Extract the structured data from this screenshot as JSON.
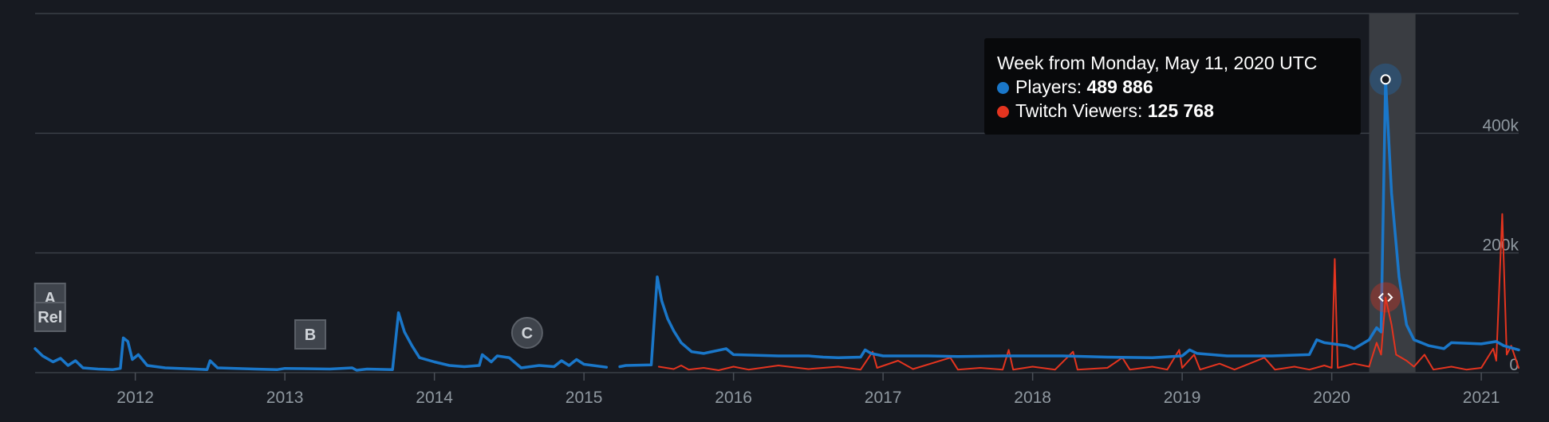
{
  "chart_data": {
    "type": "line",
    "x_start": 2011.33,
    "x_end": 2021.25,
    "xticks": [
      "2012",
      "2013",
      "2014",
      "2015",
      "2016",
      "2017",
      "2018",
      "2019",
      "2020",
      "2021"
    ],
    "yticks": [
      "400k",
      "200k",
      "0"
    ],
    "ylim": [
      0,
      600000
    ],
    "grid": true,
    "series": [
      {
        "name": "Players",
        "color": "#1a77c9",
        "points": [
          [
            2011.33,
            40000
          ],
          [
            2011.38,
            28000
          ],
          [
            2011.45,
            18000
          ],
          [
            2011.5,
            24000
          ],
          [
            2011.55,
            12000
          ],
          [
            2011.6,
            20000
          ],
          [
            2011.65,
            8000
          ],
          [
            2011.75,
            6000
          ],
          [
            2011.85,
            5000
          ],
          [
            2011.9,
            7000
          ],
          [
            2011.92,
            58000
          ],
          [
            2011.95,
            52000
          ],
          [
            2011.98,
            22000
          ],
          [
            2012.02,
            30000
          ],
          [
            2012.08,
            12000
          ],
          [
            2012.2,
            8000
          ],
          [
            2012.4,
            6000
          ],
          [
            2012.48,
            5000
          ],
          [
            2012.5,
            20000
          ],
          [
            2012.55,
            8000
          ],
          [
            2012.8,
            6000
          ],
          [
            2012.95,
            5000
          ],
          [
            2013.0,
            7000
          ],
          [
            2013.3,
            6000
          ],
          [
            2013.45,
            8000
          ],
          [
            2013.48,
            4000
          ],
          [
            2013.55,
            6000
          ],
          [
            2013.72,
            5000
          ],
          [
            2013.76,
            100000
          ],
          [
            2013.8,
            68000
          ],
          [
            2013.85,
            45000
          ],
          [
            2013.9,
            25000
          ],
          [
            2014.0,
            18000
          ],
          [
            2014.1,
            12000
          ],
          [
            2014.2,
            10000
          ],
          [
            2014.3,
            12000
          ],
          [
            2014.32,
            30000
          ],
          [
            2014.38,
            18000
          ],
          [
            2014.42,
            28000
          ],
          [
            2014.5,
            25000
          ],
          [
            2014.58,
            8000
          ],
          [
            2014.7,
            12000
          ],
          [
            2014.8,
            10000
          ],
          [
            2014.85,
            20000
          ],
          [
            2014.9,
            12000
          ],
          [
            2014.95,
            22000
          ],
          [
            2015.0,
            14000
          ],
          [
            2015.15,
            9000
          ],
          [
            2015.2,
            null
          ],
          [
            2015.24,
            10000
          ],
          [
            2015.28,
            12000
          ],
          [
            2015.45,
            13000
          ],
          [
            2015.49,
            160000
          ],
          [
            2015.52,
            120000
          ],
          [
            2015.56,
            90000
          ],
          [
            2015.6,
            70000
          ],
          [
            2015.65,
            50000
          ],
          [
            2015.72,
            35000
          ],
          [
            2015.8,
            32000
          ],
          [
            2015.95,
            40000
          ],
          [
            2016.0,
            30000
          ],
          [
            2016.3,
            28000
          ],
          [
            2016.5,
            28000
          ],
          [
            2016.6,
            26000
          ],
          [
            2016.7,
            25000
          ],
          [
            2016.85,
            26000
          ],
          [
            2016.88,
            38000
          ],
          [
            2016.92,
            32000
          ],
          [
            2017.0,
            28000
          ],
          [
            2017.3,
            28000
          ],
          [
            2017.5,
            27000
          ],
          [
            2017.8,
            28000
          ],
          [
            2018.0,
            28000
          ],
          [
            2018.2,
            28000
          ],
          [
            2018.5,
            26000
          ],
          [
            2018.8,
            25000
          ],
          [
            2019.0,
            28000
          ],
          [
            2019.05,
            38000
          ],
          [
            2019.1,
            32000
          ],
          [
            2019.3,
            28000
          ],
          [
            2019.6,
            28000
          ],
          [
            2019.85,
            30000
          ],
          [
            2019.9,
            55000
          ],
          [
            2019.95,
            50000
          ],
          [
            2020.1,
            45000
          ],
          [
            2020.15,
            40000
          ],
          [
            2020.25,
            55000
          ],
          [
            2020.3,
            75000
          ],
          [
            2020.33,
            68000
          ],
          [
            2020.36,
            489886
          ],
          [
            2020.4,
            300000
          ],
          [
            2020.45,
            160000
          ],
          [
            2020.5,
            80000
          ],
          [
            2020.55,
            55000
          ],
          [
            2020.65,
            45000
          ],
          [
            2020.75,
            40000
          ],
          [
            2020.8,
            50000
          ],
          [
            2021.0,
            48000
          ],
          [
            2021.1,
            52000
          ],
          [
            2021.15,
            45000
          ],
          [
            2021.25,
            38000
          ]
        ]
      },
      {
        "name": "Twitch Viewers",
        "color": "#e4341f",
        "points": [
          [
            2015.5,
            10000
          ],
          [
            2015.6,
            6000
          ],
          [
            2015.65,
            12000
          ],
          [
            2015.7,
            5000
          ],
          [
            2015.8,
            8000
          ],
          [
            2015.9,
            4000
          ],
          [
            2016.0,
            10000
          ],
          [
            2016.1,
            5000
          ],
          [
            2016.3,
            12000
          ],
          [
            2016.5,
            6000
          ],
          [
            2016.7,
            10000
          ],
          [
            2016.85,
            5000
          ],
          [
            2016.93,
            35000
          ],
          [
            2016.96,
            8000
          ],
          [
            2017.1,
            20000
          ],
          [
            2017.2,
            6000
          ],
          [
            2017.45,
            25000
          ],
          [
            2017.5,
            5000
          ],
          [
            2017.65,
            8000
          ],
          [
            2017.8,
            5000
          ],
          [
            2017.84,
            38000
          ],
          [
            2017.87,
            5000
          ],
          [
            2018.0,
            10000
          ],
          [
            2018.15,
            5000
          ],
          [
            2018.27,
            35000
          ],
          [
            2018.3,
            5000
          ],
          [
            2018.5,
            8000
          ],
          [
            2018.6,
            25000
          ],
          [
            2018.65,
            5000
          ],
          [
            2018.8,
            10000
          ],
          [
            2018.9,
            5000
          ],
          [
            2018.98,
            38000
          ],
          [
            2019.0,
            8000
          ],
          [
            2019.08,
            30000
          ],
          [
            2019.12,
            5000
          ],
          [
            2019.25,
            15000
          ],
          [
            2019.35,
            5000
          ],
          [
            2019.45,
            15000
          ],
          [
            2019.55,
            25000
          ],
          [
            2019.62,
            5000
          ],
          [
            2019.75,
            10000
          ],
          [
            2019.85,
            5000
          ],
          [
            2019.95,
            12000
          ],
          [
            2020.0,
            8000
          ],
          [
            2020.02,
            190000
          ],
          [
            2020.04,
            8000
          ],
          [
            2020.15,
            15000
          ],
          [
            2020.25,
            10000
          ],
          [
            2020.3,
            50000
          ],
          [
            2020.33,
            30000
          ],
          [
            2020.36,
            125768
          ],
          [
            2020.4,
            80000
          ],
          [
            2020.43,
            30000
          ],
          [
            2020.5,
            20000
          ],
          [
            2020.55,
            10000
          ],
          [
            2020.62,
            30000
          ],
          [
            2020.68,
            5000
          ],
          [
            2020.8,
            10000
          ],
          [
            2020.9,
            5000
          ],
          [
            2021.0,
            8000
          ],
          [
            2021.08,
            40000
          ],
          [
            2021.1,
            20000
          ],
          [
            2021.14,
            265000
          ],
          [
            2021.17,
            30000
          ],
          [
            2021.2,
            45000
          ],
          [
            2021.25,
            8000
          ]
        ]
      }
    ],
    "markers": [
      {
        "label": "A",
        "shape": "square",
        "x": 2011.43
      },
      {
        "label": "Rel",
        "shape": "square",
        "x": 2011.43
      },
      {
        "label": "B",
        "shape": "square",
        "x": 2013.17
      },
      {
        "label": "C",
        "shape": "circle",
        "x": 2014.62
      }
    ],
    "highlight": {
      "x_from": 2020.25,
      "x_to": 2020.56,
      "x": 2020.36
    },
    "tooltip": {
      "title": "Week from Monday, May 11, 2020 UTC",
      "rows": [
        {
          "label": "Players: ",
          "value": "489 886",
          "color": "#1a77c9"
        },
        {
          "label": "Twitch Viewers: ",
          "value": "125 768",
          "color": "#e4341f"
        }
      ]
    }
  }
}
